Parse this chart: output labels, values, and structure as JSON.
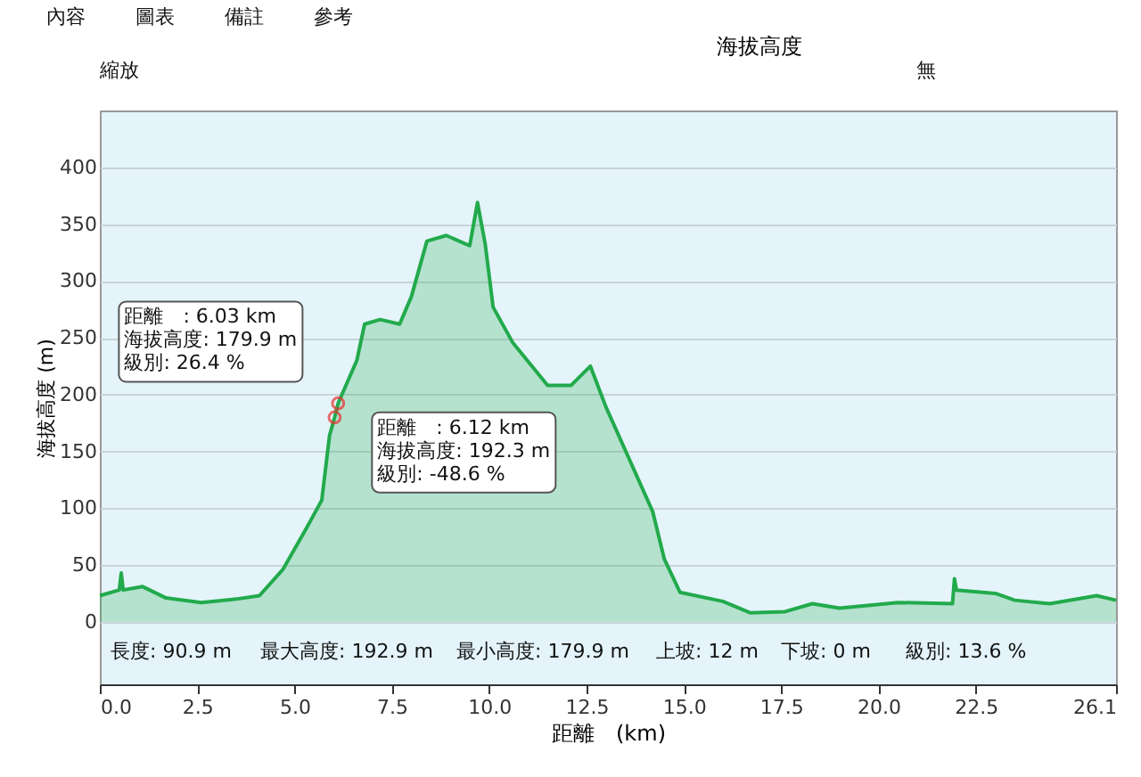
{
  "chart_data": {
    "type": "area",
    "xlabel": "距離　(km)",
    "ylabel": "海拔高度 (m)",
    "x": [
      0,
      0.5,
      0.55,
      0.6,
      1.1,
      1.7,
      2.6,
      3.5,
      4.1,
      4.7,
      5.3,
      5.7,
      5.9,
      6.03,
      6.12,
      6.6,
      6.8,
      7.2,
      7.7,
      8.0,
      8.4,
      8.9,
      9.5,
      9.7,
      9.9,
      10.1,
      10.6,
      11.1,
      11.5,
      12.1,
      12.6,
      13.0,
      13.6,
      14.2,
      14.5,
      14.9,
      16.0,
      16.7,
      17.6,
      18.3,
      19.0,
      20.5,
      21.9,
      21.95,
      22.0,
      23.0,
      23.5,
      24.4,
      25.6,
      26.1
    ],
    "series": [
      {
        "name": "海拔高度",
        "color": "#22aa4c",
        "values": [
          23,
          28,
          43,
          28,
          31,
          21,
          17,
          20,
          23,
          46,
          82,
          107,
          164,
          179.9,
          192.3,
          230,
          262,
          266,
          262,
          286,
          335,
          340,
          331,
          369,
          332,
          277,
          246,
          225,
          208,
          208,
          225,
          189,
          143,
          97,
          55,
          26,
          18,
          8,
          9,
          16,
          12,
          17,
          16,
          38,
          28,
          25,
          19,
          16,
          23,
          19
        ]
      }
    ],
    "xlim": [
      0,
      26.1
    ],
    "xticks": [
      {
        "value": 0,
        "label": "0.0"
      },
      2.5,
      {
        "value": 5,
        "label": "5.0"
      },
      7.5,
      {
        "value": 10,
        "label": "10.0"
      },
      12.5,
      {
        "value": 15,
        "label": "15.0"
      },
      17.5,
      {
        "value": 20,
        "label": "20.0"
      },
      22.5,
      26.1
    ],
    "ylim": [
      -55,
      450
    ],
    "yticks": [
      0,
      50,
      100,
      150,
      200,
      250,
      300,
      350,
      400
    ],
    "grid": "y",
    "legend": "top right",
    "annotations": [
      {
        "text": "距離　: 6.03 km\n海拔高度: 179.9 m\n級別: 26.4 %",
        "x": 6.03,
        "y": 179.9
      },
      {
        "text": "距離　: 6.12 km\n海拔高度: 192.3 m\n級別: -48.6 %",
        "x": 6.12,
        "y": 192.3
      },
      "長度: 90.9 m",
      "最大高度: 192.9 m",
      "最小高度: 179.9 m",
      "上坡: 12 m",
      "下坡: 0 m",
      "級別: 13.6 %",
      "內容",
      "圖表",
      "備註",
      "參考",
      "縮放",
      "無"
    ]
  }
}
